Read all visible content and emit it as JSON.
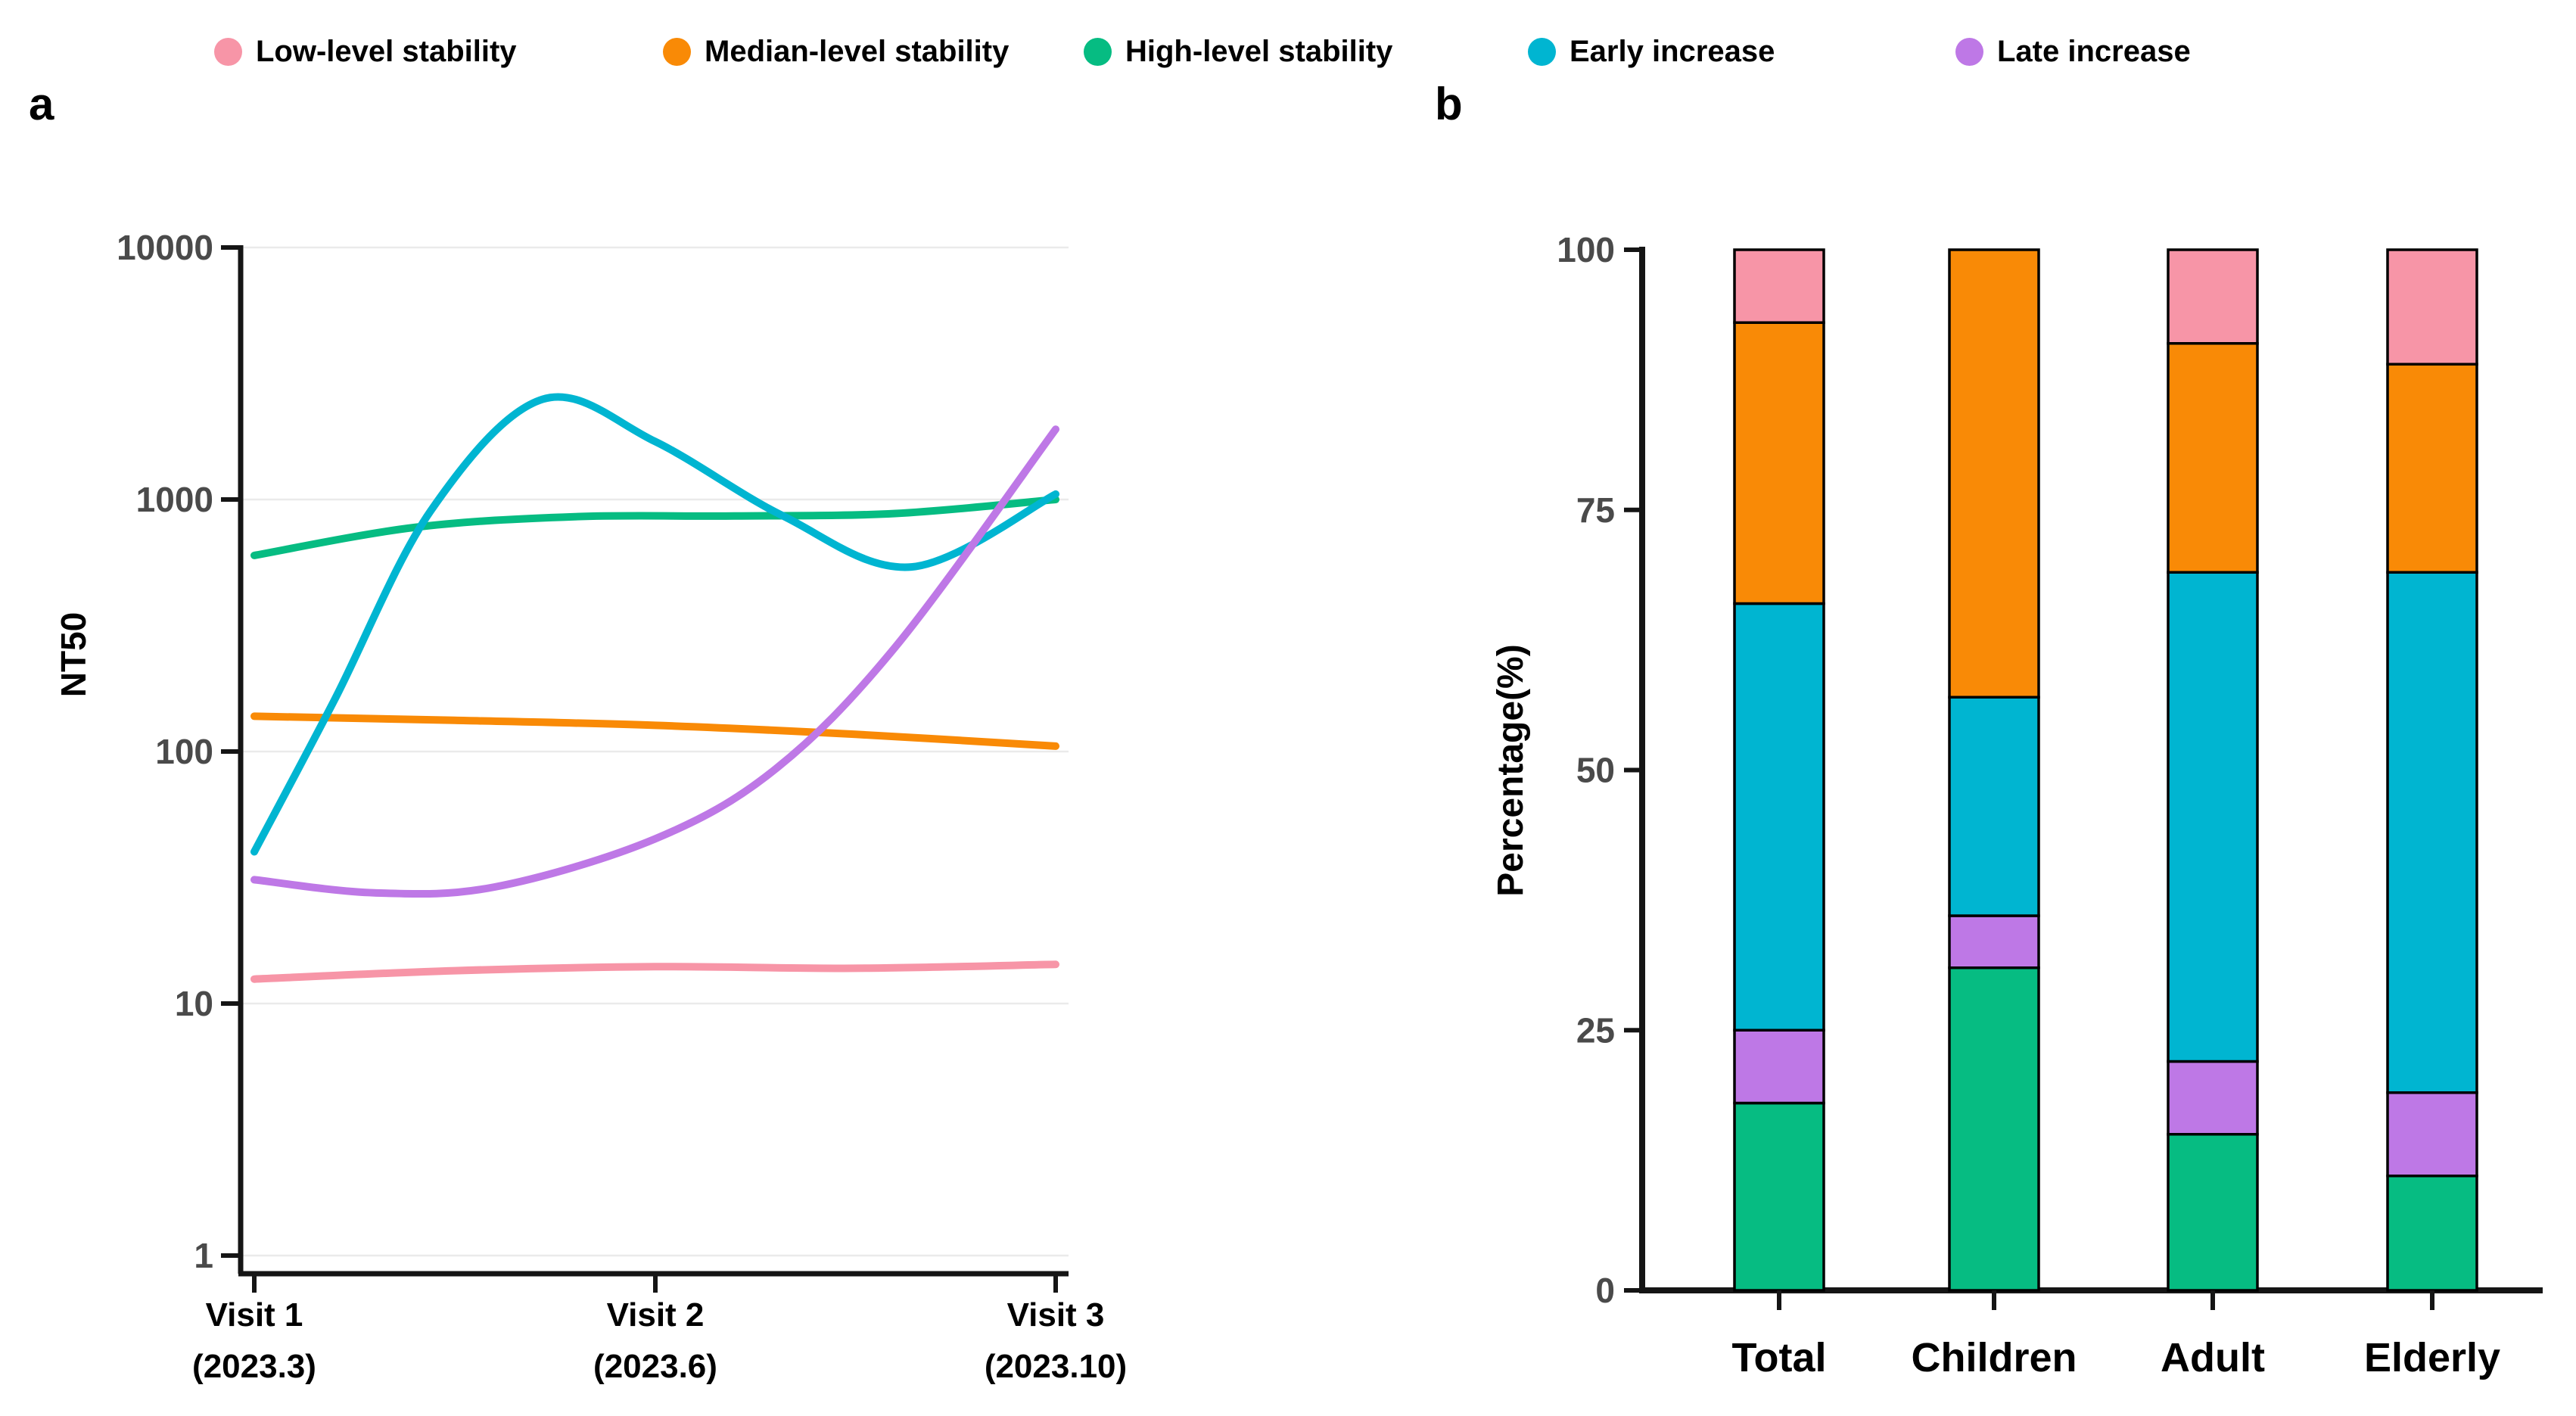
{
  "figure": {
    "panel_a_label": "a",
    "panel_b_label": "b"
  },
  "colors": {
    "pink": "#F795A7",
    "orange": "#F98A06",
    "green": "#06BC82",
    "cyan": "#00B5D1",
    "purple": "#BE78E6",
    "axis": "#151515",
    "tick_text": "#4a4a4a",
    "label_text": "#000000",
    "grid": "#eaeaea"
  },
  "legend": {
    "items": [
      {
        "label": "Low-level stability",
        "color_key": "pink"
      },
      {
        "label": "Median-level stability",
        "color_key": "orange"
      },
      {
        "label": "High-level stability",
        "color_key": "green"
      },
      {
        "label": "Early increase",
        "color_key": "cyan"
      },
      {
        "label": "Late increase",
        "color_key": "purple"
      }
    ]
  },
  "chart_data": [
    {
      "type": "line",
      "panel": "a",
      "ylabel": "NT50",
      "yscale": "log",
      "ylim": [
        1,
        10000
      ],
      "yticks": [
        1,
        10,
        100,
        1000,
        10000
      ],
      "grid": "horizontal-decades",
      "legend_position": "top",
      "xticks": [
        {
          "line1": "Visit 1",
          "line2": "(2023.3)"
        },
        {
          "line1": "Visit 2",
          "line2": "(2023.6)"
        },
        {
          "line1": "Visit 3",
          "line2": "(2023.10)"
        }
      ],
      "series": [
        {
          "name": "Low-level stability",
          "color_key": "pink",
          "points": [
            [
              0,
              12.5
            ],
            [
              0.25,
              13.5
            ],
            [
              0.5,
              14
            ],
            [
              0.75,
              13.8
            ],
            [
              1,
              14.3
            ]
          ]
        },
        {
          "name": "Median-level stability",
          "color_key": "orange",
          "points": [
            [
              0,
              138
            ],
            [
              0.25,
              133
            ],
            [
              0.5,
              127
            ],
            [
              0.75,
              117
            ],
            [
              1,
              105
            ]
          ]
        },
        {
          "name": "High-level stability",
          "color_key": "green",
          "points": [
            [
              0,
              600
            ],
            [
              0.2,
              775
            ],
            [
              0.4,
              855
            ],
            [
              0.6,
              860
            ],
            [
              0.8,
              880
            ],
            [
              1,
              1000
            ]
          ]
        },
        {
          "name": "Early increase",
          "color_key": "cyan",
          "points": [
            [
              0,
              40
            ],
            [
              0.1,
              160
            ],
            [
              0.22,
              900
            ],
            [
              0.36,
              2500
            ],
            [
              0.5,
              1700
            ],
            [
              0.66,
              860
            ],
            [
              0.82,
              540
            ],
            [
              1,
              1050
            ]
          ]
        },
        {
          "name": "Late increase",
          "color_key": "purple",
          "points": [
            [
              0,
              31
            ],
            [
              0.15,
              27.5
            ],
            [
              0.3,
              29
            ],
            [
              0.5,
              45
            ],
            [
              0.65,
              85
            ],
            [
              0.8,
              260
            ],
            [
              1,
              1900
            ]
          ]
        }
      ]
    },
    {
      "type": "stacked_bar",
      "panel": "b",
      "ylabel": "Percentage(%)",
      "ylim": [
        0,
        100
      ],
      "yticks": [
        0,
        25,
        50,
        75,
        100
      ],
      "categories": [
        "Total",
        "Children",
        "Adult",
        "Elderly"
      ],
      "stack_order": "bottom-to-top",
      "series": [
        {
          "name": "High-level stability",
          "color_key": "green",
          "values": [
            18,
            31,
            15,
            11
          ]
        },
        {
          "name": "Late increase",
          "color_key": "purple",
          "values": [
            7,
            5,
            7,
            8
          ]
        },
        {
          "name": "Early increase",
          "color_key": "cyan",
          "values": [
            41,
            21,
            47,
            50
          ]
        },
        {
          "name": "Median-level stability",
          "color_key": "orange",
          "values": [
            27,
            43,
            22,
            20
          ]
        },
        {
          "name": "Low-level stability",
          "color_key": "pink",
          "values": [
            7,
            0,
            9,
            11
          ]
        }
      ]
    }
  ]
}
